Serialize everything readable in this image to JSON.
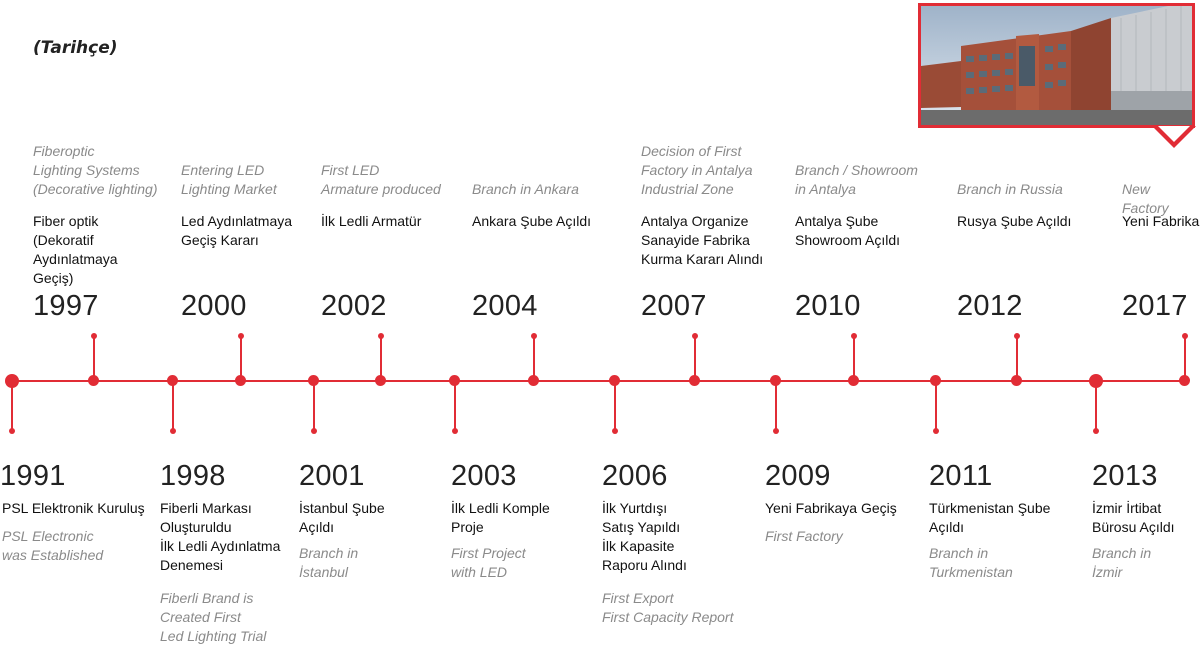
{
  "title": "(Tarihçe)",
  "accent_color": "#e12c35",
  "photo": {
    "icon": "factory-building-photo"
  },
  "top_events": [
    {
      "year": "1997",
      "tr": "Fiber optik\n(Dekoratif\nAydınlatmaya\nGeçiş)",
      "en": "Fiberoptic\nLighting Systems\n(Decorative lighting)"
    },
    {
      "year": "2000",
      "tr": "Led Aydınlatmaya\nGeçiş Kararı",
      "en": "Entering LED\nLighting Market"
    },
    {
      "year": "2002",
      "tr": "İlk Ledli Armatür",
      "en": "First LED\nArmature produced"
    },
    {
      "year": "2004",
      "tr": "Ankara Şube Açıldı",
      "en": "Branch in Ankara"
    },
    {
      "year": "2007",
      "tr": "Antalya Organize\nSanayide Fabrika\nKurma Kararı Alındı",
      "en": "Decision of First\nFactory in Antalya\nIndustrial Zone"
    },
    {
      "year": "2010",
      "tr": "Antalya Şube\nShowroom Açıldı",
      "en": "Branch / Showroom\nin Antalya"
    },
    {
      "year": "2012",
      "tr": "Rusya Şube Açıldı",
      "en": "Branch in Russia"
    },
    {
      "year": "2017",
      "tr": "Yeni Fabrika",
      "en": "New Factory"
    }
  ],
  "bottom_events": [
    {
      "year": "1991",
      "tr": "PSL Elektronik Kuruluş",
      "en": "PSL Electronic\nwas Established"
    },
    {
      "year": "1998",
      "tr": "Fiberli Markası\nOluşturuldu\nİlk Ledli Aydınlatma\nDenemesi",
      "en": "Fiberli Brand is\nCreated First\nLed Lighting Trial"
    },
    {
      "year": "2001",
      "tr": "İstanbul Şube\nAçıldı",
      "en": "Branch in\nİstanbul"
    },
    {
      "year": "2003",
      "tr": "İlk Ledli Komple\nProje",
      "en": "First Project\nwith LED"
    },
    {
      "year": "2006",
      "tr": "İlk Yurtdışı\nSatış Yapıldı\nİlk Kapasite\nRaporu Alındı",
      "en": "First Export\nFirst Capacity Report"
    },
    {
      "year": "2009",
      "tr": "Yeni Fabrikaya Geçiş",
      "en": "First Factory"
    },
    {
      "year": "2011",
      "tr": "Türkmenistan Şube\nAçıldı",
      "en": "Branch in\nTurkmenistan"
    },
    {
      "year": "2013",
      "tr": "İzmir İrtibat\nBürosu Açıldı",
      "en": "Branch in\nİzmir"
    }
  ]
}
